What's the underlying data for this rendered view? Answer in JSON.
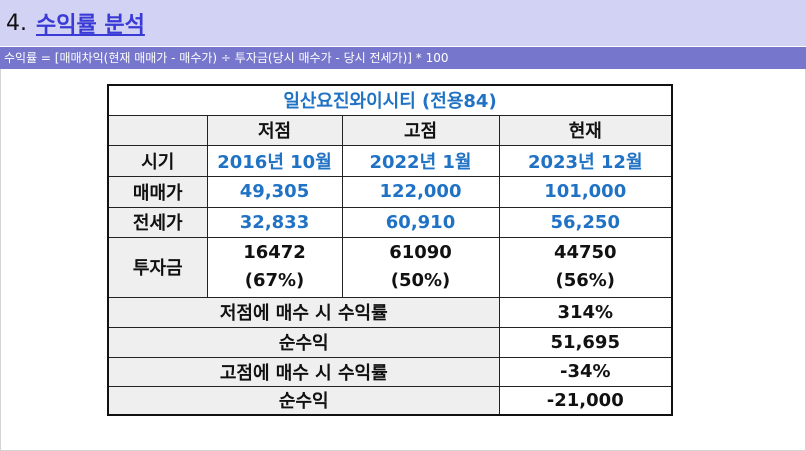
{
  "section": {
    "number": "4.",
    "title": "수익률 분석",
    "formula": "수익률 = [매매차익(현재 매매가 - 매수가) ÷ 투자금(당시 매수가 - 당시 전세가)] * 100"
  },
  "table": {
    "title": "일산요진와이시티 (전용84)",
    "columns": [
      "저점",
      "고점",
      "현재"
    ],
    "rows": [
      {
        "label": "시기",
        "values": [
          "2016년 10월",
          "2022년 1월",
          "2023년 12월"
        ]
      },
      {
        "label": "매매가",
        "values": [
          "49,305",
          "122,000",
          "101,000"
        ]
      },
      {
        "label": "전세가",
        "values": [
          "32,833",
          "60,910",
          "56,250"
        ]
      },
      {
        "label": "투자금",
        "values": [
          {
            "amount": "16472",
            "ratio": "(67%)"
          },
          {
            "amount": "61090",
            "ratio": "(50%)"
          },
          {
            "amount": "44750",
            "ratio": "(56%)"
          }
        ]
      }
    ],
    "summary": [
      {
        "label": "저점에 매수 시 수익률",
        "value": "314%"
      },
      {
        "label": "순수익",
        "value": "51,695"
      },
      {
        "label": "고점에 매수 시 수익률",
        "value": "-34%"
      },
      {
        "label": "순수익",
        "value": "-21,000"
      }
    ]
  },
  "colors": {
    "header_bg": "#d2d2f4",
    "formula_bg": "#7676cc",
    "link": "#3a3ad6",
    "value_blue": "#1f72c4",
    "label_bg": "#efefef"
  }
}
